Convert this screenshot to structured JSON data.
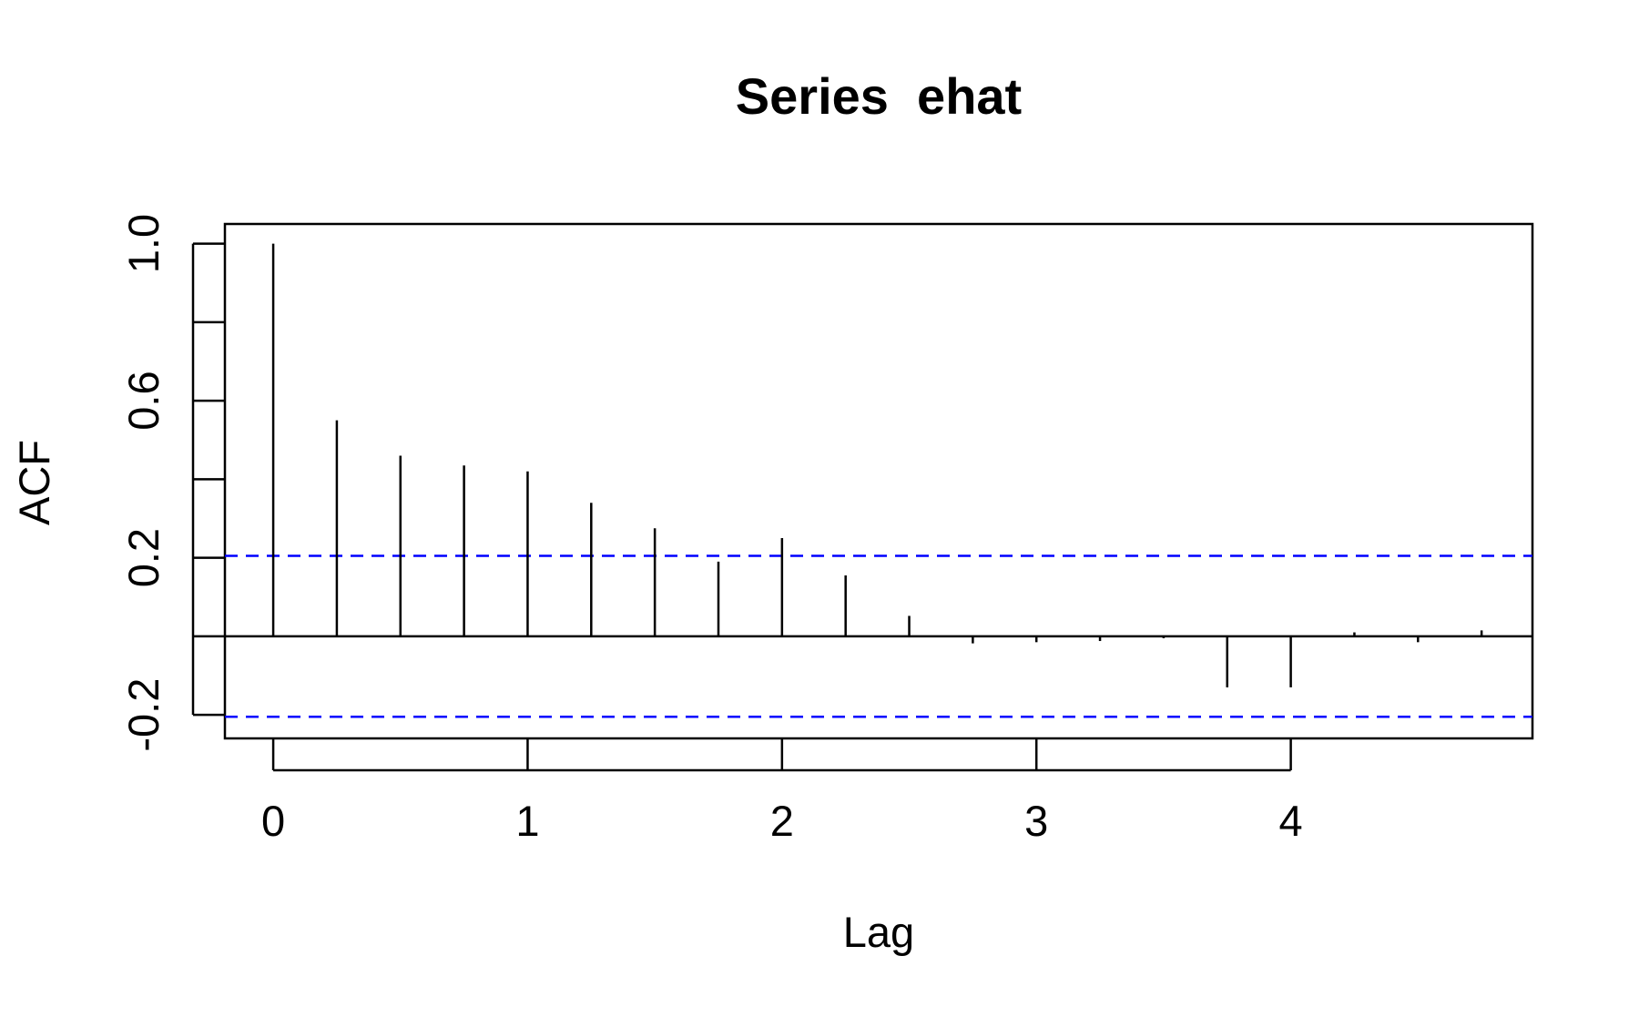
{
  "chart_data": {
    "type": "bar",
    "title": "Series  ehat",
    "xlabel": "Lag",
    "ylabel": "ACF",
    "xlim": [
      -0.19,
      4.95
    ],
    "ylim": [
      -0.26,
      1.05
    ],
    "x_ticks": [
      0,
      1,
      2,
      3,
      4
    ],
    "x_tick_labels": [
      "0",
      "1",
      "2",
      "3",
      "4"
    ],
    "y_ticks": [
      -0.2,
      0.0,
      0.2,
      0.4,
      0.6,
      0.8,
      1.0
    ],
    "y_tick_labels": [
      "-0.2",
      "",
      "0.2",
      "",
      "0.6",
      "",
      "1.0"
    ],
    "lags": [
      0,
      0.25,
      0.5,
      0.75,
      1.0,
      1.25,
      1.5,
      1.75,
      2.0,
      2.25,
      2.5,
      2.75,
      3.0,
      3.25,
      3.5,
      3.75,
      4.0,
      4.25,
      4.5,
      4.75
    ],
    "acf": [
      1.0,
      0.55,
      0.46,
      0.435,
      0.42,
      0.34,
      0.275,
      0.19,
      0.25,
      0.155,
      0.052,
      -0.018,
      -0.015,
      -0.012,
      -0.005,
      -0.13,
      -0.13,
      0.01,
      -0.015,
      0.015
    ],
    "confidence_bounds": [
      0.205,
      -0.205
    ],
    "colors": {
      "bars": "#000000",
      "ci_line": "#0000ff",
      "axes": "#000000"
    },
    "ci_line_style": "dashed",
    "grid": false
  }
}
